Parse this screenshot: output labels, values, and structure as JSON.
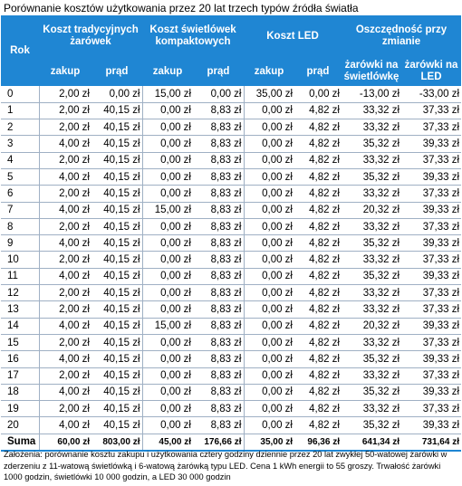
{
  "title": "Porównanie kosztów użytkowania przez 20 lat trzech typów źródła światła",
  "headers": {
    "rok": "Rok",
    "group1": "Koszt tradycyjnych żarówek",
    "group2": "Koszt świetlówek kompaktowych",
    "group3": "Koszt LED",
    "group4": "Oszczędność przy zmianie",
    "zakup": "zakup",
    "prad": "prąd",
    "sav1": "żarówki na świetlówkę",
    "sav2": "żarówki na LED"
  },
  "rows": [
    [
      "0",
      "2,00 zł",
      "0,00 zł",
      "15,00 zł",
      "0,00 zł",
      "35,00 zł",
      "0,00 zł",
      "-13,00 zł",
      "-33,00 zł"
    ],
    [
      "1",
      "2,00 zł",
      "40,15 zł",
      "0,00 zł",
      "8,83 zł",
      "0,00 zł",
      "4,82 zł",
      "33,32 zł",
      "37,33 zł"
    ],
    [
      "2",
      "2,00 zł",
      "40,15 zł",
      "0,00 zł",
      "8,83 zł",
      "0,00 zł",
      "4,82 zł",
      "33,32 zł",
      "37,33 zł"
    ],
    [
      "3",
      "4,00 zł",
      "40,15 zł",
      "0,00 zł",
      "8,83 zł",
      "0,00 zł",
      "4,82 zł",
      "35,32 zł",
      "39,33 zł"
    ],
    [
      "4",
      "2,00 zł",
      "40,15 zł",
      "0,00 zł",
      "8,83 zł",
      "0,00 zł",
      "4,82 zł",
      "33,32 zł",
      "37,33 zł"
    ],
    [
      "5",
      "4,00 zł",
      "40,15 zł",
      "0,00 zł",
      "8,83 zł",
      "0,00 zł",
      "4,82 zł",
      "35,32 zł",
      "39,33 zł"
    ],
    [
      "6",
      "2,00 zł",
      "40,15 zł",
      "0,00 zł",
      "8,83 zł",
      "0,00 zł",
      "4,82 zł",
      "33,32 zł",
      "37,33 zł"
    ],
    [
      "7",
      "4,00 zł",
      "40,15 zł",
      "15,00 zł",
      "8,83 zł",
      "0,00 zł",
      "4,82 zł",
      "20,32 zł",
      "39,33 zł"
    ],
    [
      "8",
      "2,00 zł",
      "40,15 zł",
      "0,00 zł",
      "8,83 zł",
      "0,00 zł",
      "4,82 zł",
      "33,32 zł",
      "37,33 zł"
    ],
    [
      "9",
      "4,00 zł",
      "40,15 zł",
      "0,00 zł",
      "8,83 zł",
      "0,00 zł",
      "4,82 zł",
      "35,32 zł",
      "39,33 zł"
    ],
    [
      "10",
      "2,00 zł",
      "40,15 zł",
      "0,00 zł",
      "8,83 zł",
      "0,00 zł",
      "4,82 zł",
      "33,32 zł",
      "37,33 zł"
    ],
    [
      "11",
      "4,00 zł",
      "40,15 zł",
      "0,00 zł",
      "8,83 zł",
      "0,00 zł",
      "4,82 zł",
      "35,32 zł",
      "39,33 zł"
    ],
    [
      "12",
      "2,00 zł",
      "40,15 zł",
      "0,00 zł",
      "8,83 zł",
      "0,00 zł",
      "4,82 zł",
      "33,32 zł",
      "37,33 zł"
    ],
    [
      "13",
      "2,00 zł",
      "40,15 zł",
      "0,00 zł",
      "8,83 zł",
      "0,00 zł",
      "4,82 zł",
      "33,32 zł",
      "37,33 zł"
    ],
    [
      "14",
      "4,00 zł",
      "40,15 zł",
      "15,00 zł",
      "8,83 zł",
      "0,00 zł",
      "4,82 zł",
      "20,32 zł",
      "39,33 zł"
    ],
    [
      "15",
      "2,00 zł",
      "40,15 zł",
      "0,00 zł",
      "8,83 zł",
      "0,00 zł",
      "4,82 zł",
      "33,32 zł",
      "37,33 zł"
    ],
    [
      "16",
      "4,00 zł",
      "40,15 zł",
      "0,00 zł",
      "8,83 zł",
      "0,00 zł",
      "4,82 zł",
      "35,32 zł",
      "39,33 zł"
    ],
    [
      "17",
      "2,00 zł",
      "40,15 zł",
      "0,00 zł",
      "8,83 zł",
      "0,00 zł",
      "4,82 zł",
      "33,32 zł",
      "37,33 zł"
    ],
    [
      "18",
      "4,00 zł",
      "40,15 zł",
      "0,00 zł",
      "8,83 zł",
      "0,00 zł",
      "4,82 zł",
      "35,32 zł",
      "39,33 zł"
    ],
    [
      "19",
      "2,00 zł",
      "40,15 zł",
      "0,00 zł",
      "8,83 zł",
      "0,00 zł",
      "4,82 zł",
      "33,32 zł",
      "37,33 zł"
    ],
    [
      "20",
      "4,00 zł",
      "40,15 zł",
      "0,00 zł",
      "8,83 zł",
      "0,00 zł",
      "4,82 zł",
      "35,32 zł",
      "39,33 zł"
    ]
  ],
  "summary": [
    "Suma",
    "60,00 zł",
    "803,00 zł",
    "45,00 zł",
    "176,66 zł",
    "35,00 zł",
    "96,36 zł",
    "641,34 zł",
    "731,64 zł"
  ],
  "note": "Założenia: porównanie kosztu zakupu i użytkowania cztery godziny dziennie przez 20 lat zwykłej 50-watowej żarówki w zderzeniu z 11-watową świetlówką i 6-watową żarówką typu LED. Cena 1 kWh energii to 55 groszy. Trwałość żarówki 1000 godzin, świetlówki 10 000 godzin, a LED 30 000 godzin",
  "colors": {
    "header_bg": "#1f86d3",
    "header_text": "#ffffff",
    "row_border": "#9fb0c4"
  }
}
